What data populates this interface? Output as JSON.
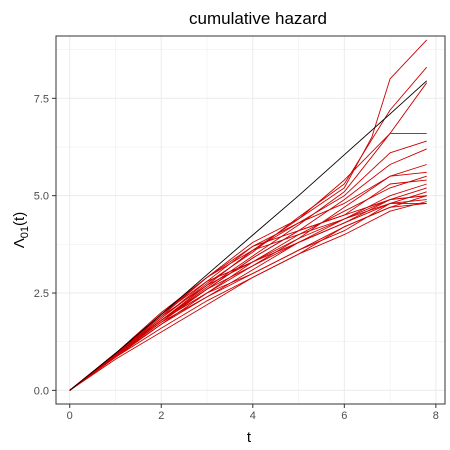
{
  "chart_data": {
    "type": "line",
    "title": "cumulative hazard",
    "xlabel": "t",
    "ylabel_main": "Λ",
    "ylabel_sub": "01",
    "ylabel_tail": "(t)",
    "xlim": [
      -0.3,
      8.2
    ],
    "ylim": [
      -0.35,
      9.1
    ],
    "xticks": [
      0,
      2,
      4,
      6,
      8
    ],
    "xtick_labels": [
      "0",
      "2",
      "4",
      "6",
      "8"
    ],
    "yticks": [
      0,
      2.5,
      5,
      7.5
    ],
    "ytick_labels": [
      "0.0",
      "2.5",
      "5.0",
      "7.5"
    ],
    "grid": true,
    "colors": {
      "true_curve": "#000000",
      "estimates": "#cc0000",
      "grid": "#ebebeb",
      "border": "#333333"
    },
    "true_curve": {
      "x": [
        0,
        1,
        2,
        3,
        4,
        5,
        6,
        7,
        7.8
      ],
      "y": [
        0,
        0.95,
        1.95,
        2.97,
        3.99,
        5.0,
        6.05,
        7.1,
        7.95
      ]
    },
    "estimates": [
      {
        "x": [
          0,
          1,
          2,
          3,
          4,
          5,
          6,
          6.6,
          7.0,
          7.8
        ],
        "y": [
          0,
          0.9,
          1.8,
          2.7,
          3.6,
          4.4,
          5.2,
          6.5,
          8.0,
          9.0
        ]
      },
      {
        "x": [
          0,
          1,
          2,
          3,
          4,
          5,
          6,
          7,
          7.8
        ],
        "y": [
          0,
          0.95,
          1.85,
          2.75,
          3.55,
          4.45,
          5.3,
          7.2,
          8.3
        ]
      },
      {
        "x": [
          0,
          1,
          2,
          3,
          4,
          5,
          6,
          7,
          7.8
        ],
        "y": [
          0,
          0.9,
          1.8,
          2.65,
          3.45,
          4.25,
          5.1,
          6.6,
          7.9
        ]
      },
      {
        "x": [
          0,
          1,
          2,
          3,
          4,
          5,
          6,
          7,
          7.8
        ],
        "y": [
          0,
          0.92,
          1.95,
          2.9,
          3.8,
          4.4,
          5.4,
          6.6,
          6.6
        ]
      },
      {
        "x": [
          0,
          1,
          2,
          3,
          4,
          5,
          6,
          7,
          7.8
        ],
        "y": [
          0,
          0.9,
          1.8,
          2.7,
          3.6,
          4.3,
          5.0,
          6.1,
          6.4
        ]
      },
      {
        "x": [
          0,
          1,
          2,
          3,
          4,
          5,
          6,
          7,
          7.8
        ],
        "y": [
          0,
          0.88,
          1.75,
          2.6,
          3.4,
          4.1,
          4.9,
          5.8,
          6.2
        ]
      },
      {
        "x": [
          0,
          1,
          2,
          3,
          4,
          5,
          6,
          7,
          7.8
        ],
        "y": [
          0,
          0.92,
          1.85,
          2.8,
          3.7,
          4.3,
          4.8,
          5.5,
          5.8
        ]
      },
      {
        "x": [
          0,
          1,
          2,
          3,
          4,
          5,
          6,
          7,
          7.8
        ],
        "y": [
          0,
          0.85,
          1.7,
          2.5,
          3.2,
          3.9,
          4.7,
          5.5,
          5.6
        ]
      },
      {
        "x": [
          0,
          1,
          2,
          3,
          4,
          5,
          6,
          7,
          7.8
        ],
        "y": [
          0,
          0.9,
          1.8,
          2.5,
          3.3,
          4.0,
          4.6,
          5.2,
          5.5
        ]
      },
      {
        "x": [
          0,
          1,
          2,
          3,
          4,
          5,
          6,
          7,
          7.8
        ],
        "y": [
          0,
          0.95,
          1.8,
          2.6,
          3.4,
          4.1,
          4.5,
          5.3,
          5.4
        ]
      },
      {
        "x": [
          0,
          1,
          2,
          3,
          4,
          5,
          6,
          7,
          7.8
        ],
        "y": [
          0,
          0.95,
          1.9,
          2.7,
          3.3,
          3.9,
          4.4,
          5.0,
          5.3
        ]
      },
      {
        "x": [
          0,
          1,
          2,
          3,
          4,
          5,
          6,
          7,
          7.8
        ],
        "y": [
          0,
          0.88,
          1.7,
          2.4,
          3.1,
          3.8,
          4.3,
          4.9,
          5.2
        ]
      },
      {
        "x": [
          0,
          1,
          2,
          3,
          4,
          5,
          6,
          7,
          7.8
        ],
        "y": [
          0,
          0.95,
          2.0,
          2.9,
          3.6,
          4.0,
          4.4,
          4.8,
          5.1
        ]
      },
      {
        "x": [
          0,
          1,
          2,
          3,
          4,
          5,
          6,
          7,
          7.8
        ],
        "y": [
          0,
          0.92,
          1.8,
          2.5,
          3.0,
          3.6,
          4.2,
          4.7,
          5.0
        ]
      },
      {
        "x": [
          0,
          1,
          2,
          3,
          4,
          5,
          6,
          7,
          7.8
        ],
        "y": [
          0,
          0.95,
          1.9,
          2.9,
          3.7,
          4.1,
          4.5,
          4.9,
          5.0
        ]
      },
      {
        "x": [
          0,
          1,
          2,
          3,
          4,
          5,
          6,
          7,
          7.8
        ],
        "y": [
          0,
          0.9,
          1.75,
          2.4,
          3.0,
          3.6,
          4.1,
          4.8,
          4.9
        ]
      },
      {
        "x": [
          0,
          1,
          2,
          3,
          4,
          5,
          6,
          7,
          7.8
        ],
        "y": [
          0,
          0.85,
          1.6,
          2.3,
          2.9,
          3.5,
          4.0,
          4.6,
          4.85
        ]
      },
      {
        "x": [
          0,
          1,
          2,
          3,
          4,
          5,
          6,
          7,
          7.8
        ],
        "y": [
          0,
          0.8,
          1.5,
          2.2,
          2.9,
          3.5,
          4.2,
          4.7,
          4.8
        ]
      },
      {
        "x": [
          0,
          1,
          2,
          3,
          4,
          5,
          6,
          7,
          7.8
        ],
        "y": [
          0,
          0.92,
          1.95,
          2.8,
          3.3,
          3.8,
          4.3,
          4.8,
          4.8
        ]
      },
      {
        "x": [
          0,
          1,
          2,
          3,
          4,
          5,
          6,
          7,
          7.8
        ],
        "y": [
          0,
          0.9,
          1.8,
          2.6,
          3.2,
          3.8,
          4.4,
          4.9,
          5.0
        ]
      }
    ]
  }
}
